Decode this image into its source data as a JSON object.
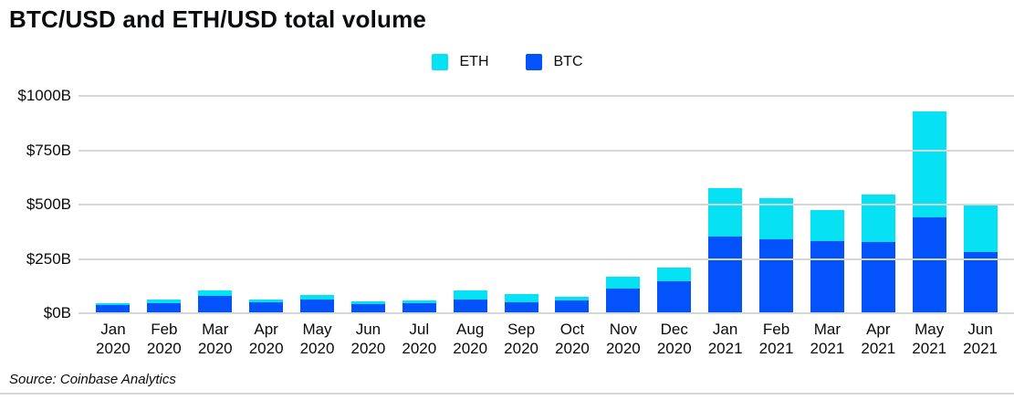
{
  "title": "BTC/USD and ETH/USD total volume",
  "source": "Source: Coinbase Analytics",
  "colors": {
    "btc": "#0352fc",
    "eth": "#06e2f4",
    "gridline": "#d6d6d6",
    "text": "#0a0b0d"
  },
  "legend": [
    {
      "label": "ETH",
      "color": "#06e2f4"
    },
    {
      "label": "BTC",
      "color": "#0352fc"
    }
  ],
  "chart_data": {
    "type": "bar",
    "stacked": true,
    "title": "BTC/USD and ETH/USD total volume",
    "xlabel": "",
    "ylabel": "",
    "ylim": [
      0,
      1000
    ],
    "grid": true,
    "legend_position": "top-center",
    "categories": [
      "Jan 2020",
      "Feb 2020",
      "Mar 2020",
      "Apr 2020",
      "May 2020",
      "Jun 2020",
      "Jul 2020",
      "Aug 2020",
      "Sep 2020",
      "Oct 2020",
      "Nov 2020",
      "Dec 2020",
      "Jan 2021",
      "Feb 2021",
      "Mar 2021",
      "Apr 2021",
      "May 2021",
      "Jun 2021"
    ],
    "series": [
      {
        "name": "BTC",
        "color": "#0352fc",
        "values": [
          37,
          45,
          79,
          51,
          63,
          42,
          45,
          65,
          49,
          59,
          112,
          149,
          355,
          341,
          332,
          327,
          442,
          281
        ]
      },
      {
        "name": "ETH",
        "color": "#06e2f4",
        "values": [
          8,
          17,
          25,
          14,
          21,
          11,
          16,
          42,
          38,
          17,
          55,
          62,
          222,
          189,
          141,
          219,
          488,
          216
        ]
      }
    ],
    "yticks": [
      {
        "label": "$0B",
        "value": 0
      },
      {
        "label": "$250B",
        "value": 250
      },
      {
        "label": "$500B",
        "value": 500
      },
      {
        "label": "$750B",
        "value": 750
      },
      {
        "label": "$1000B",
        "value": 1000
      }
    ]
  }
}
